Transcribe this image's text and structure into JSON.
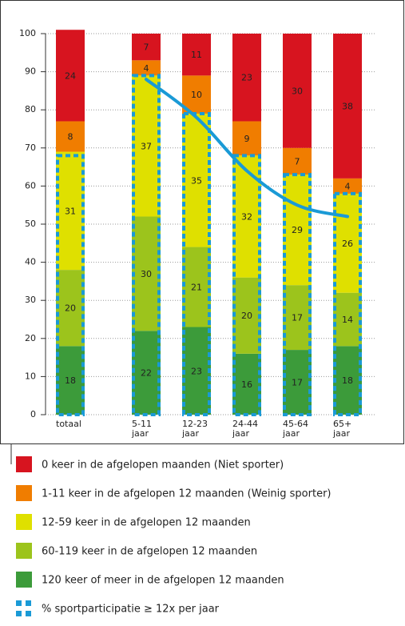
{
  "chart_data": {
    "type": "stacked-bar",
    "categories": [
      "totaal",
      "5-11 jaar",
      "12-23 jaar",
      "24-44 jaar",
      "45-64 jaar",
      "65+ jaar"
    ],
    "series": [
      {
        "name": "0 keer in de afgelopen maanden (Niet sporter)",
        "color": "#d7141f",
        "values": [
          24,
          7,
          11,
          23,
          30,
          38
        ]
      },
      {
        "name": "1-11 keer in de afgelopen 12 maanden (Weinig sporter)",
        "color": "#f07d00",
        "values": [
          8,
          4,
          10,
          9,
          7,
          4
        ]
      },
      {
        "name": "12-59 keer in de afgelopen 12 maanden",
        "color": "#dfe000",
        "values": [
          31,
          37,
          35,
          32,
          29,
          26
        ]
      },
      {
        "name": "60-119 keer in de afgelopen 12 maanden",
        "color": "#9cc41c",
        "values": [
          20,
          30,
          21,
          20,
          17,
          14
        ]
      },
      {
        "name": "120 keer of meer in de afgelopen 12 maanden",
        "color": "#3c9b3a",
        "values": [
          18,
          22,
          23,
          16,
          17,
          18
        ]
      }
    ],
    "participation": {
      "name": "% sportparticipatie ≥ 12x per jaar",
      "color": "#1a9ad6",
      "values": [
        68,
        89,
        79,
        68,
        63,
        58
      ]
    },
    "trend": {
      "color": "#1a9ad6",
      "values": [
        null,
        88,
        78,
        64,
        55,
        52
      ]
    },
    "ylim": [
      0,
      100
    ],
    "yticks": [
      0,
      10,
      20,
      30,
      40,
      50,
      60,
      70,
      80,
      90,
      100
    ],
    "grid": true
  }
}
